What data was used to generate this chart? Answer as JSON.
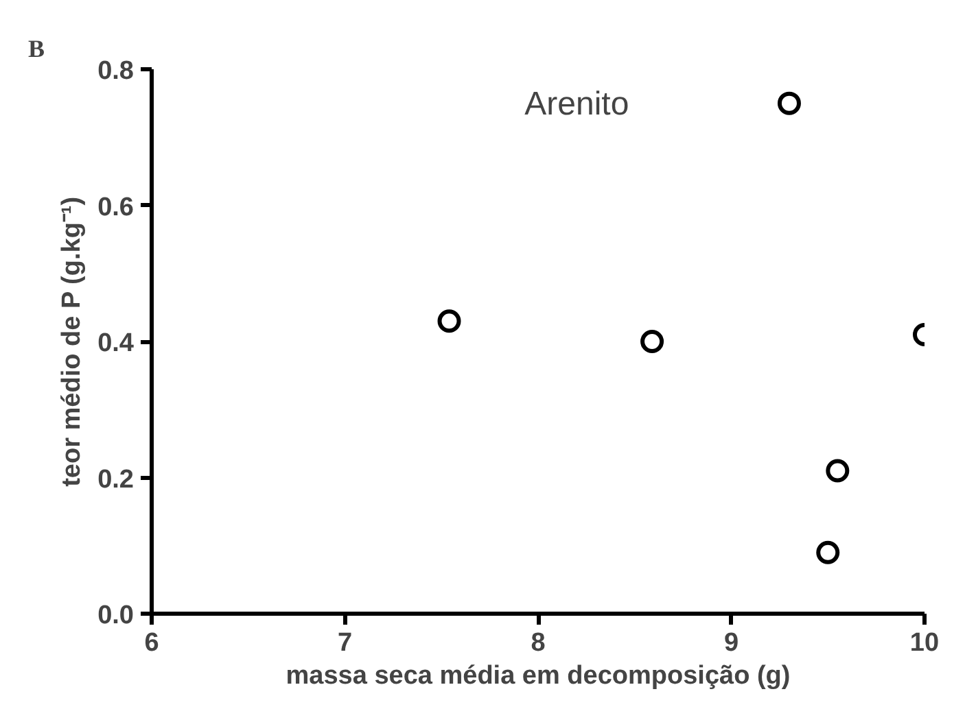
{
  "chart_data": {
    "type": "scatter",
    "title": "B",
    "xlabel": "massa seca média em decomposição (g)",
    "ylabel": "teor médio de P (g.kg⁻¹)",
    "annotations": [
      "Arenito"
    ],
    "x": [
      7.54,
      8.59,
      9.3,
      10.0,
      9.55,
      9.5
    ],
    "values": [
      0.43,
      0.4,
      0.75,
      0.41,
      0.21,
      0.09
    ],
    "color": "#000000",
    "marker": "circle",
    "grid": false,
    "xlim": [
      6,
      10
    ],
    "xticks": [
      6,
      7,
      8,
      9,
      10
    ],
    "ylim": [
      0,
      0.8
    ],
    "yticks": [
      {
        "value": 0,
        "label": "0.0"
      },
      {
        "value": 0.2,
        "label": "0.2"
      },
      {
        "value": 0.4,
        "label": "0.4"
      },
      {
        "value": 0.6,
        "label": "0.6"
      },
      {
        "value": 0.8,
        "label": "0.8"
      }
    ]
  }
}
